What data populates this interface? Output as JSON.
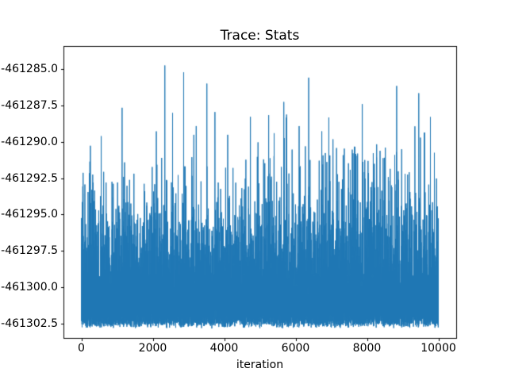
{
  "chart_data": {
    "type": "line",
    "title": "Trace: Stats",
    "xlabel": "iteration",
    "ylabel": "",
    "series_name": "Stats",
    "line_color": "#1f77b4",
    "axis_color": "#000000",
    "background_color": "#ffffff",
    "grid": false,
    "legend": "none",
    "xlim": [
      -500,
      10500
    ],
    "ylim": [
      -461303.5,
      -461283.4
    ],
    "xticks": [
      0,
      2000,
      4000,
      6000,
      8000,
      10000
    ],
    "x_tick_labels": [
      "0",
      "2000",
      "4000",
      "6000",
      "8000",
      "10000"
    ],
    "yticks": [
      -461285.0,
      -461287.5,
      -461290.0,
      -461292.5,
      -461295.0,
      -461297.5,
      -461300.0,
      -461302.5
    ],
    "y_tick_labels": [
      "-461285.0",
      "-461287.5",
      "-461290.0",
      "-461292.5",
      "-461295.0",
      "-461297.5",
      "-461300.0",
      "-461302.5"
    ],
    "n_points": 10000,
    "value_summary": {
      "min": -461302.9,
      "max": -461284.2,
      "dense_band_top": -461295.5,
      "baseline": -461302.6,
      "description": "Dense noisy MCMC-style trace: solid mass near the baseline around -461302.5 to -461297 with frequent narrow spikes reaching up toward -461284"
    },
    "synthesis": {
      "seed": 20,
      "baseline": -461302.85,
      "baseline_jitter": 0.4,
      "tail_scale": 2.3,
      "max_excursion": 18.6
    }
  }
}
